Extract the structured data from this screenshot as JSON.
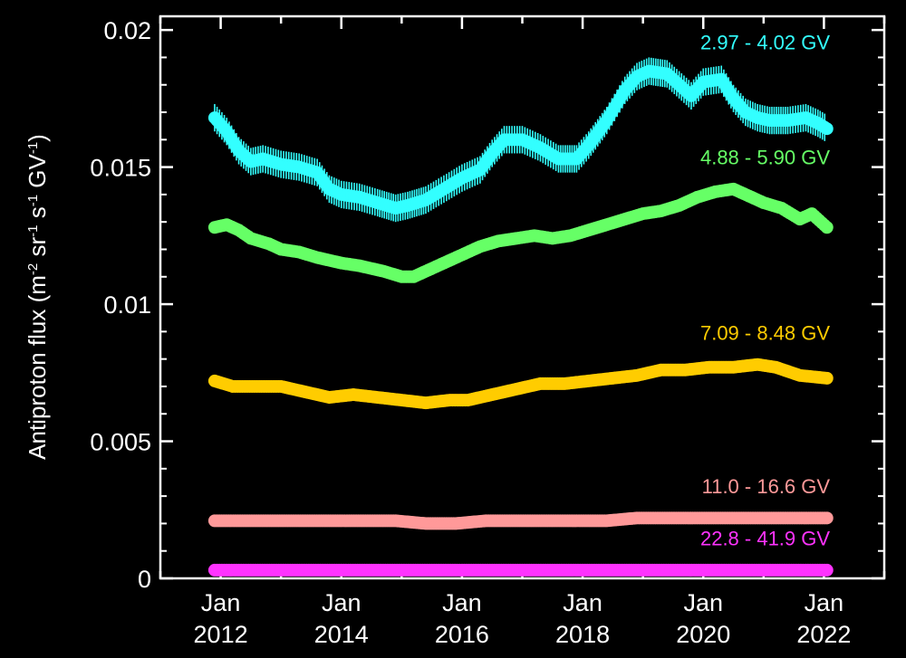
{
  "chart_data": {
    "type": "scatter",
    "title": "",
    "xlabel": "",
    "ylabel": "Antiproton flux (m-2 sr-1 s-1 GV-1)",
    "ylabel_parts": {
      "main": "Antiproton flux (m",
      "sup1": "-2",
      "mid1": " sr",
      "sup2": "-1",
      "mid2": " s",
      "sup3": "-1",
      "mid3": " GV",
      "sup4": "-1",
      "end": ")"
    },
    "xlim": [
      2011.0,
      2023.0
    ],
    "ylim": [
      0,
      0.0205
    ],
    "x_ticks": [
      {
        "value": 2012,
        "line1": "Jan",
        "line2": "2012"
      },
      {
        "value": 2014,
        "line1": "Jan",
        "line2": "2014"
      },
      {
        "value": 2016,
        "line1": "Jan",
        "line2": "2016"
      },
      {
        "value": 2018,
        "line1": "Jan",
        "line2": "2018"
      },
      {
        "value": 2020,
        "line1": "Jan",
        "line2": "2020"
      },
      {
        "value": 2022,
        "line1": "Jan",
        "line2": "2022"
      }
    ],
    "y_ticks": [
      {
        "value": 0,
        "label": "0"
      },
      {
        "value": 0.005,
        "label": "0.005"
      },
      {
        "value": 0.01,
        "label": "0.01"
      },
      {
        "value": 0.015,
        "label": "0.015"
      },
      {
        "value": 0.02,
        "label": "0.02"
      }
    ],
    "grid": false,
    "series": [
      {
        "name": "2.97 - 4.02 GV",
        "color": "#33ffff",
        "error": 0.0005,
        "x": [
          2011.9,
          2012.1,
          2012.3,
          2012.5,
          2012.7,
          2013.0,
          2013.3,
          2013.6,
          2013.8,
          2014.0,
          2014.3,
          2014.6,
          2014.9,
          2015.1,
          2015.4,
          2015.7,
          2016.0,
          2016.3,
          2016.5,
          2016.7,
          2017.0,
          2017.3,
          2017.6,
          2017.9,
          2018.1,
          2018.4,
          2018.7,
          2018.9,
          2019.1,
          2019.4,
          2019.6,
          2019.8,
          2020.0,
          2020.3,
          2020.5,
          2020.7,
          2020.9,
          2021.1,
          2021.4,
          2021.7,
          2021.9,
          2022.05
        ],
        "y": [
          0.0168,
          0.0163,
          0.0156,
          0.0152,
          0.0153,
          0.0151,
          0.015,
          0.0148,
          0.0142,
          0.014,
          0.0139,
          0.0137,
          0.0135,
          0.0136,
          0.0138,
          0.0142,
          0.0146,
          0.0149,
          0.0155,
          0.016,
          0.016,
          0.0157,
          0.0153,
          0.0153,
          0.0158,
          0.0167,
          0.0178,
          0.0183,
          0.0185,
          0.0184,
          0.018,
          0.0176,
          0.0181,
          0.0182,
          0.0175,
          0.017,
          0.0168,
          0.0167,
          0.0167,
          0.0168,
          0.0166,
          0.0164
        ]
      },
      {
        "name": "4.88 - 5.90 GV",
        "color": "#66ff66",
        "error": 0.0,
        "x": [
          2011.9,
          2012.1,
          2012.3,
          2012.5,
          2012.8,
          2013.0,
          2013.3,
          2013.6,
          2014.0,
          2014.3,
          2014.7,
          2015.0,
          2015.2,
          2015.4,
          2015.7,
          2016.0,
          2016.3,
          2016.6,
          2016.9,
          2017.2,
          2017.5,
          2017.8,
          2018.1,
          2018.4,
          2018.7,
          2019.0,
          2019.3,
          2019.6,
          2019.9,
          2020.2,
          2020.5,
          2020.8,
          2021.0,
          2021.3,
          2021.6,
          2021.8,
          2022.05
        ],
        "y": [
          0.0128,
          0.0129,
          0.0127,
          0.0124,
          0.0122,
          0.012,
          0.0119,
          0.0117,
          0.0115,
          0.0114,
          0.0112,
          0.011,
          0.011,
          0.0112,
          0.0115,
          0.0118,
          0.0121,
          0.0123,
          0.0124,
          0.0125,
          0.0124,
          0.0125,
          0.0127,
          0.0129,
          0.0131,
          0.0133,
          0.0134,
          0.0136,
          0.0139,
          0.0141,
          0.0142,
          0.0139,
          0.0137,
          0.0135,
          0.0131,
          0.0133,
          0.0128
        ]
      },
      {
        "name": "7.09 - 8.48 GV",
        "color": "#ffcc00",
        "error": 0.0,
        "x": [
          2011.9,
          2012.2,
          2012.6,
          2013.0,
          2013.4,
          2013.8,
          2014.2,
          2014.6,
          2015.0,
          2015.4,
          2015.8,
          2016.1,
          2016.5,
          2016.9,
          2017.3,
          2017.7,
          2018.1,
          2018.5,
          2018.9,
          2019.3,
          2019.7,
          2020.1,
          2020.5,
          2020.9,
          2021.2,
          2021.6,
          2022.05
        ],
        "y": [
          0.0072,
          0.007,
          0.007,
          0.007,
          0.0068,
          0.0066,
          0.0067,
          0.0066,
          0.0065,
          0.0064,
          0.0065,
          0.0065,
          0.0067,
          0.0069,
          0.0071,
          0.0071,
          0.0072,
          0.0073,
          0.0074,
          0.0076,
          0.0076,
          0.0077,
          0.0077,
          0.0078,
          0.0077,
          0.0074,
          0.0073
        ]
      },
      {
        "name": "11.0 - 16.6 GV",
        "color": "#ff9999",
        "error": 0.0,
        "x": [
          2011.9,
          2012.4,
          2012.9,
          2013.4,
          2013.9,
          2014.4,
          2014.9,
          2015.4,
          2015.9,
          2016.4,
          2016.9,
          2017.4,
          2017.9,
          2018.4,
          2018.9,
          2019.4,
          2019.9,
          2020.4,
          2020.9,
          2021.4,
          2021.9,
          2022.05
        ],
        "y": [
          0.0021,
          0.0021,
          0.0021,
          0.0021,
          0.0021,
          0.0021,
          0.0021,
          0.002,
          0.002,
          0.0021,
          0.0021,
          0.0021,
          0.0021,
          0.0021,
          0.0022,
          0.0022,
          0.0022,
          0.0022,
          0.0022,
          0.0022,
          0.0022,
          0.0022
        ]
      },
      {
        "name": "22.8 - 41.9 GV",
        "color": "#ff33ff",
        "error": 0.0,
        "x": [
          2011.9,
          2012.5,
          2013.0,
          2013.5,
          2014.0,
          2014.5,
          2015.0,
          2015.5,
          2016.0,
          2016.5,
          2017.0,
          2017.5,
          2018.0,
          2018.5,
          2019.0,
          2019.5,
          2020.0,
          2020.5,
          2021.0,
          2021.5,
          2022.05
        ],
        "y": [
          0.0003,
          0.0003,
          0.0003,
          0.0003,
          0.0003,
          0.0003,
          0.0003,
          0.0003,
          0.0003,
          0.0003,
          0.0003,
          0.0003,
          0.0003,
          0.0003,
          0.0003,
          0.0003,
          0.0003,
          0.0003,
          0.0003,
          0.0003,
          0.0003
        ]
      }
    ],
    "series_labels": [
      {
        "name": "2.97 - 4.02 GV",
        "x": 2022.1,
        "y": 0.0193
      },
      {
        "name": "4.88 - 5.90 GV",
        "x": 2022.1,
        "y": 0.0151
      },
      {
        "name": "7.09 - 8.48 GV",
        "x": 2022.1,
        "y": 0.0087
      },
      {
        "name": "11.0 - 16.6 GV",
        "x": 2022.1,
        "y": 0.0031
      },
      {
        "name": "22.8 - 41.9 GV",
        "x": 2022.1,
        "y": 0.0012
      }
    ]
  }
}
